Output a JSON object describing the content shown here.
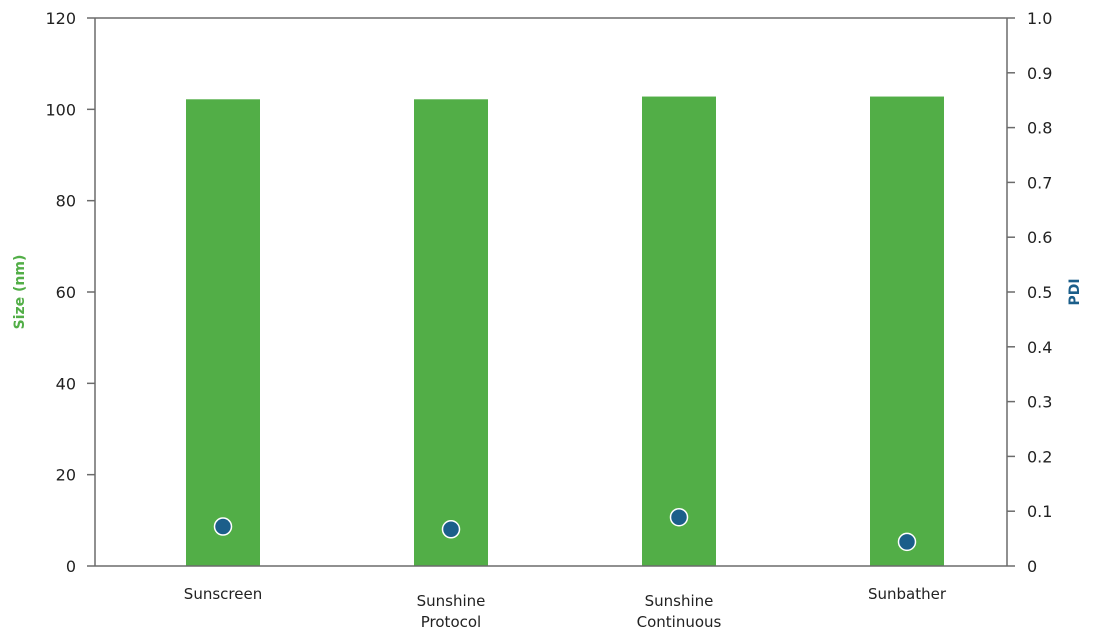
{
  "chart_data": {
    "type": "bar",
    "categories": [
      [
        "Sunscreen"
      ],
      [
        "Sunshine",
        "Protocol"
      ],
      [
        "Sunshine",
        "Continuous"
      ],
      [
        "Sunbather"
      ]
    ],
    "series": [
      {
        "axis": "left",
        "kind": "bar",
        "values": [
          102.2,
          102.2,
          102.8,
          102.8
        ],
        "color": "#52ae47"
      },
      {
        "axis": "right",
        "kind": "scatter",
        "values": [
          0.072,
          0.067,
          0.089,
          0.044
        ],
        "color": "#1b5e8a"
      }
    ],
    "ylabel": "Size (nm)",
    "ylabel_color": "#52ae47",
    "ylim": [
      0,
      120
    ],
    "yticks": [
      0,
      20,
      40,
      60,
      80,
      100,
      120
    ],
    "y2label": "PDI",
    "y2label_color": "#1b5e8a",
    "y2lim": [
      0,
      1.0
    ],
    "y2ticks": [
      "0",
      "0.1",
      "0.2",
      "0.3",
      "0.4",
      "0.5",
      "0.6",
      "0.7",
      "0.8",
      "0.9",
      "1.0"
    ],
    "grid": false,
    "legend": "none"
  }
}
